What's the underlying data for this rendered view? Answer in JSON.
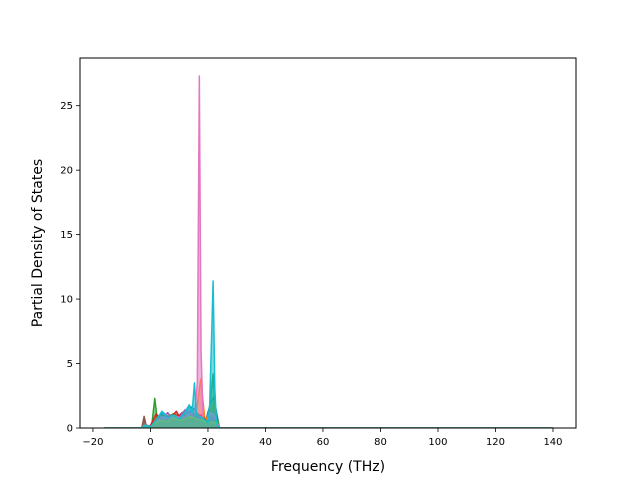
{
  "chart_data": {
    "type": "line",
    "title": "",
    "xlabel": "Frequency (THz)",
    "ylabel": "Partial Density of States",
    "xlim": [
      -24.5,
      148
    ],
    "ylim": [
      0,
      28.7
    ],
    "xticks": [
      -20,
      0,
      20,
      40,
      60,
      80,
      100,
      120,
      140
    ],
    "yticks": [
      0,
      5,
      10,
      15,
      20,
      25
    ],
    "grid": false,
    "legend": "none",
    "colors": {
      "blue": "#1f77b4",
      "orange": "#ff7f0e",
      "green": "#2ca02c",
      "red": "#d62728",
      "purple": "#9467bd",
      "brown": "#8c564b",
      "pink": "#e377c2",
      "gray": "#7f7f7f",
      "olive": "#bcbd22",
      "cyan": "#17becf"
    },
    "series": [
      {
        "color": "#1f77b4",
        "x": [
          -16,
          -3,
          -2.2,
          -1.5,
          0,
          1.5,
          3,
          4.5,
          6,
          8,
          10,
          12,
          13.5,
          15,
          16.5,
          17.5,
          19,
          21,
          22,
          24,
          140
        ],
        "y": [
          0,
          0,
          0.6,
          0.1,
          0.2,
          0.5,
          0.9,
          1.2,
          0.8,
          0.9,
          1.0,
          1.3,
          1.7,
          1.5,
          0.7,
          1.0,
          0.4,
          2.0,
          2.4,
          0,
          0
        ]
      },
      {
        "color": "#ff7f0e",
        "x": [
          -16,
          -3,
          -2.2,
          -1.5,
          0,
          2,
          4,
          6,
          8,
          10,
          12,
          14,
          16,
          17.5,
          19,
          21,
          22,
          24,
          140
        ],
        "y": [
          0,
          0,
          0.5,
          0.1,
          0.1,
          0.6,
          0.9,
          0.7,
          1.1,
          0.8,
          1.0,
          0.9,
          1.4,
          3.8,
          0.5,
          1.5,
          1.8,
          0,
          0
        ]
      },
      {
        "color": "#2ca02c",
        "x": [
          -16,
          -3,
          -1,
          0.5,
          1.5,
          2.5,
          4,
          6,
          8,
          10,
          12,
          13,
          16,
          18,
          20,
          21,
          21.8,
          22.5,
          24,
          140
        ],
        "y": [
          0,
          0,
          0,
          0.3,
          2.3,
          0.4,
          1.0,
          0.9,
          1.1,
          0.9,
          1.0,
          0.5,
          1.2,
          0.8,
          0.5,
          2.5,
          4.2,
          1.5,
          0,
          0
        ]
      },
      {
        "color": "#d62728",
        "x": [
          -16,
          -3,
          -2.2,
          -1.5,
          0,
          2,
          3.5,
          5,
          7,
          9,
          10,
          11,
          12.5,
          14,
          16,
          18,
          20,
          21,
          22,
          24,
          140
        ],
        "y": [
          0,
          0,
          0.7,
          0.1,
          0.2,
          1.1,
          0.7,
          1.0,
          0.8,
          1.3,
          0.9,
          1.2,
          0.6,
          1.0,
          0.9,
          1.0,
          0.3,
          0.8,
          0.9,
          0,
          0
        ]
      },
      {
        "color": "#9467bd",
        "x": [
          -16,
          -3,
          -2.2,
          -1.5,
          0,
          2,
          4,
          6,
          8,
          10,
          12,
          14,
          16,
          18,
          20,
          22,
          24,
          140
        ],
        "y": [
          0,
          0,
          0.4,
          0.1,
          0.1,
          0.5,
          0.7,
          1.2,
          0.6,
          0.8,
          1.4,
          1.2,
          1.0,
          0.8,
          0.4,
          1.0,
          0,
          0
        ]
      },
      {
        "color": "#8c564b",
        "x": [
          -16,
          -3,
          -2.2,
          -1.5,
          0,
          2,
          4,
          6,
          8,
          10,
          12,
          14,
          16,
          18,
          20,
          22,
          24,
          140
        ],
        "y": [
          0,
          0,
          0.9,
          0.2,
          0.1,
          0.4,
          0.6,
          0.5,
          0.7,
          0.6,
          0.8,
          0.7,
          0.6,
          0.9,
          0.3,
          0.6,
          0,
          0
        ]
      },
      {
        "color": "#e377c2",
        "x": [
          -16,
          -3,
          -2,
          0,
          2,
          4,
          6,
          8,
          10,
          12,
          14,
          15.5,
          16.3,
          17,
          17.6,
          18.3,
          19.5,
          21,
          22,
          24,
          140
        ],
        "y": [
          0,
          0,
          0.3,
          0.1,
          0.5,
          0.9,
          0.7,
          1.0,
          0.8,
          0.9,
          1.1,
          1.4,
          3.5,
          27.3,
          6.0,
          0.8,
          0.3,
          1.2,
          1.0,
          0,
          0
        ]
      },
      {
        "color": "#7f7f7f",
        "x": [
          -16,
          -3,
          -2,
          0,
          2,
          4,
          6,
          8,
          10,
          12,
          14,
          16,
          18,
          20,
          22,
          24,
          140
        ],
        "y": [
          0,
          0,
          0.3,
          0.1,
          0.3,
          0.5,
          0.6,
          0.4,
          0.7,
          0.5,
          0.6,
          0.8,
          0.5,
          0.3,
          0.6,
          0,
          0
        ]
      },
      {
        "color": "#bcbd22",
        "x": [
          -16,
          -3,
          -2,
          0,
          2,
          4,
          6,
          8,
          10,
          12,
          14,
          16,
          18,
          20,
          22,
          24,
          140
        ],
        "y": [
          0,
          0,
          0.2,
          0.1,
          0.4,
          0.6,
          0.5,
          0.8,
          0.6,
          0.7,
          0.9,
          0.7,
          0.6,
          0.4,
          0.5,
          0,
          0
        ]
      },
      {
        "color": "#17becf",
        "x": [
          -16,
          -3,
          -2,
          0,
          2,
          4,
          6,
          8,
          10,
          12,
          13.5,
          14.5,
          15.3,
          16,
          18,
          20,
          20.6,
          21.2,
          21.8,
          22.4,
          23,
          24,
          140
        ],
        "y": [
          0,
          0,
          0.2,
          0.1,
          0.6,
          1.3,
          0.8,
          1.0,
          0.7,
          1.2,
          1.8,
          1.2,
          3.5,
          1.0,
          0.8,
          0.4,
          1.8,
          6.5,
          11.4,
          3.0,
          0.3,
          0,
          0
        ]
      }
    ]
  }
}
